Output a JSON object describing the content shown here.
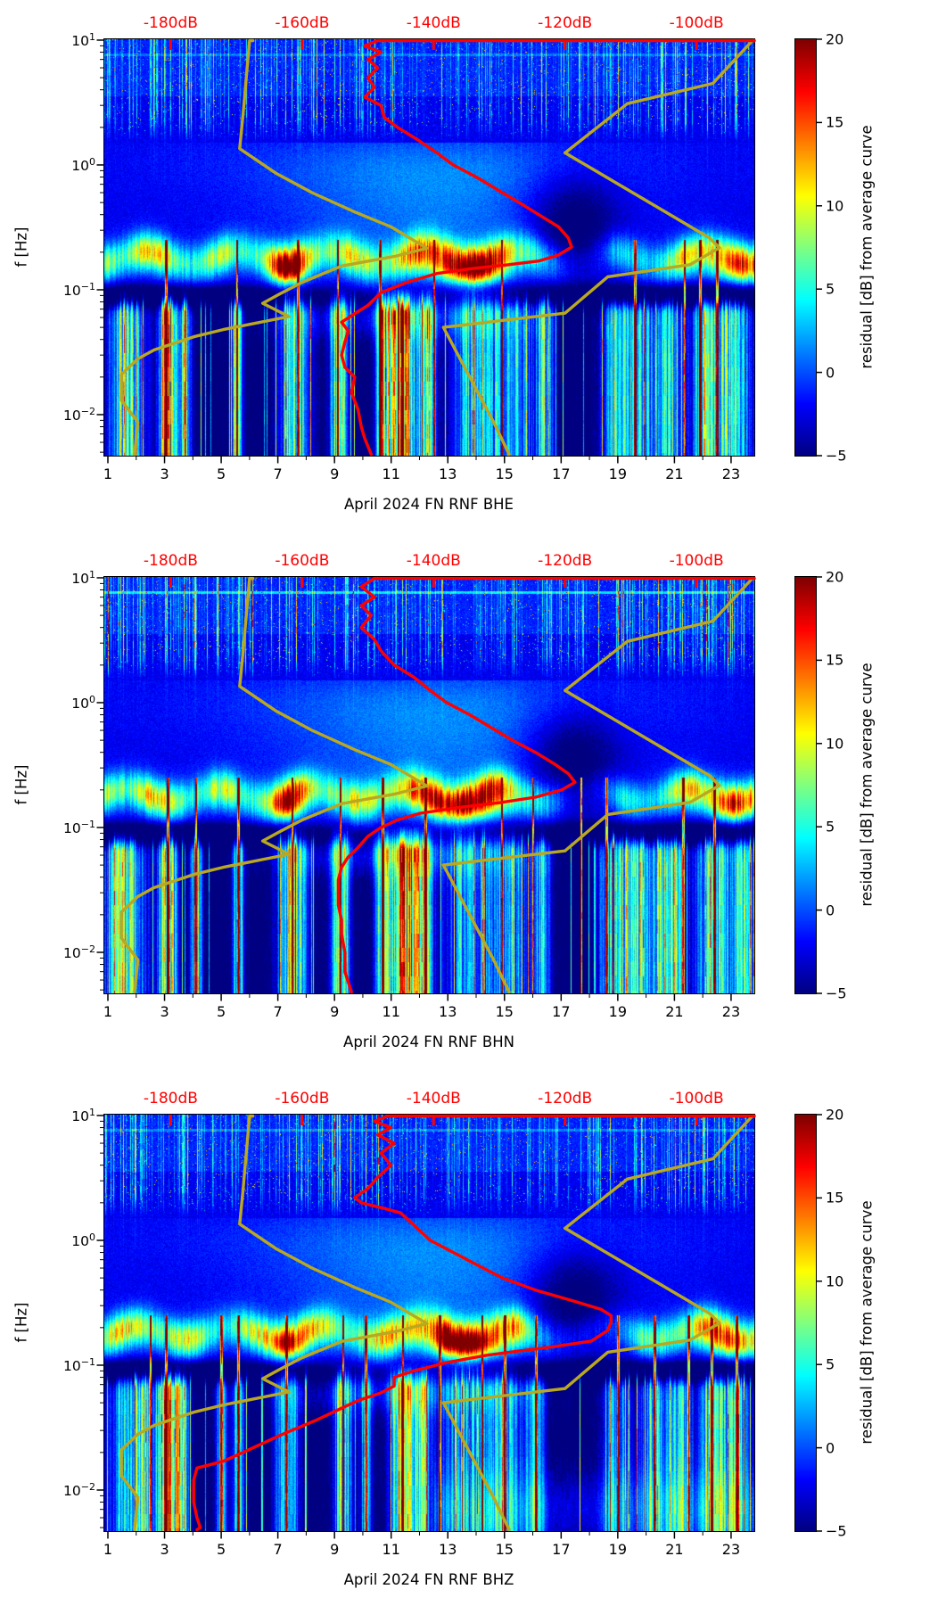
{
  "chart_data": {
    "type": "heatmap",
    "title": "",
    "description": "Three stacked day-frequency spectrogram panels of seismic PSD residuals (channels BHE, BHN, BHZ) for April 2024, station FN RNF, with overlaid average PSD curve (red) and high/low noise-model curves (dark yellow) plotted against a secondary dB axis on top.",
    "x_axis": {
      "tick_days": [
        1,
        3,
        5,
        7,
        9,
        11,
        13,
        15,
        17,
        19,
        21,
        23
      ],
      "minor_tick_days": [
        2,
        4,
        6,
        8,
        10,
        12,
        14,
        16,
        18,
        20,
        22
      ],
      "range_days": [
        0.874,
        23.82
      ]
    },
    "y_axis": {
      "label": "f [Hz]",
      "scale": "log",
      "decade_exponents": [
        1,
        0,
        -1,
        -2
      ],
      "decade_labels": [
        "10¹",
        "10⁰",
        "10⁻¹",
        "10⁻²"
      ],
      "range_hz": [
        0.0047,
        10.2
      ]
    },
    "top_axis": {
      "color": "#ff0000",
      "tick_values_dB": [
        -180,
        -160,
        -140,
        -120,
        -100
      ],
      "tick_labels": [
        "-180dB",
        "-160dB",
        "-140dB",
        "-120dB",
        "-100dB"
      ],
      "range_dB": [
        -190.1,
        -91.2
      ]
    },
    "colorbar": {
      "label": "residual [dB] from average curve",
      "tick_values": [
        20,
        15,
        10,
        5,
        0,
        -5
      ],
      "tick_labels": [
        "20",
        "15",
        "10",
        "5",
        "0",
        "−5"
      ],
      "range": [
        -5,
        20
      ],
      "colormap": "jet"
    },
    "curves": {
      "average_curve_color": "#ff0000",
      "noise_model_color": "#b9a820",
      "noise_model_high_dB_vs_Hz": [
        [
          10.5,
          -90.5
        ],
        [
          10,
          -91.5
        ],
        [
          4.5,
          -97.5
        ],
        [
          3.1,
          -110.5
        ],
        [
          1.25,
          -120
        ],
        [
          0.26,
          -98
        ],
        [
          0.217,
          -96.5
        ],
        [
          0.159,
          -101
        ],
        [
          0.127,
          -113.5
        ],
        [
          0.065,
          -120
        ],
        [
          0.05,
          -138.5
        ],
        [
          0.02,
          -134.5
        ],
        [
          0.009,
          -131
        ],
        [
          0.0046,
          -128.5
        ]
      ],
      "noise_model_low_dB_vs_Hz": [
        [
          10.5,
          -167.5
        ],
        [
          10,
          -168
        ],
        [
          5,
          -168.5
        ],
        [
          2.5,
          -169
        ],
        [
          1.35,
          -169.5
        ],
        [
          0.86,
          -164
        ],
        [
          0.6,
          -158.5
        ],
        [
          0.42,
          -152
        ],
        [
          0.32,
          -146.5
        ],
        [
          0.215,
          -141
        ],
        [
          0.185,
          -146
        ],
        [
          0.155,
          -154
        ],
        [
          0.115,
          -160
        ],
        [
          0.092,
          -163.5
        ],
        [
          0.078,
          -166
        ],
        [
          0.061,
          -162
        ],
        [
          0.048,
          -172
        ],
        [
          0.042,
          -176.5
        ],
        [
          0.033,
          -182.5
        ],
        [
          0.028,
          -185
        ],
        [
          0.021,
          -187.5
        ],
        [
          0.013,
          -187.5
        ],
        [
          0.0087,
          -185
        ],
        [
          0.0046,
          -185.5
        ]
      ]
    },
    "panels": [
      {
        "channel": "BHE",
        "xlabel": "April 2024 FN RNF  BHE",
        "average_curve_dB_vs_Hz": [
          [
            10.5,
            -90
          ],
          [
            10,
            -148.5
          ],
          [
            9,
            -150.5
          ],
          [
            8,
            -148
          ],
          [
            7,
            -150
          ],
          [
            6,
            -148.5
          ],
          [
            5,
            -150
          ],
          [
            4.2,
            -149
          ],
          [
            3.5,
            -150.5
          ],
          [
            3,
            -148
          ],
          [
            2.4,
            -147.5
          ],
          [
            2,
            -145.5
          ],
          [
            1.6,
            -142.5
          ],
          [
            1.25,
            -139.5
          ],
          [
            1,
            -137
          ],
          [
            0.8,
            -133.5
          ],
          [
            0.62,
            -130
          ],
          [
            0.5,
            -127
          ],
          [
            0.4,
            -124
          ],
          [
            0.32,
            -121
          ],
          [
            0.26,
            -119.5
          ],
          [
            0.22,
            -119
          ],
          [
            0.19,
            -121
          ],
          [
            0.17,
            -124
          ],
          [
            0.158,
            -129
          ],
          [
            0.148,
            -134
          ],
          [
            0.135,
            -139.5
          ],
          [
            0.115,
            -144
          ],
          [
            0.095,
            -148
          ],
          [
            0.075,
            -150
          ],
          [
            0.062,
            -152.5
          ],
          [
            0.055,
            -154
          ],
          [
            0.047,
            -153
          ],
          [
            0.038,
            -153.5
          ],
          [
            0.03,
            -154
          ],
          [
            0.024,
            -153.5
          ],
          [
            0.02,
            -152
          ],
          [
            0.015,
            -152.5
          ],
          [
            0.011,
            -151.5
          ],
          [
            0.008,
            -151
          ],
          [
            0.0065,
            -150.5
          ],
          [
            0.0046,
            -149.5
          ]
        ],
        "texture": {
          "seed": 7,
          "hline": 0.5,
          "ms7": 9,
          "core": 9,
          "wash": 0,
          "clusters": [
            [
              1.6,
              0.7,
              12
            ],
            [
              3.05,
              0.25,
              19
            ],
            [
              3.6,
              0.3,
              12
            ],
            [
              5.55,
              0.18,
              14
            ],
            [
              7.6,
              0.5,
              13
            ],
            [
              9.15,
              0.3,
              15
            ],
            [
              10.7,
              0.25,
              16
            ],
            [
              11.4,
              0.5,
              21
            ],
            [
              12.3,
              0.25,
              15
            ],
            [
              13.8,
              0.7,
              9
            ],
            [
              15.2,
              0.8,
              10
            ],
            [
              16.4,
              0.3,
              10
            ],
            [
              18.9,
              0.5,
              9
            ],
            [
              19.8,
              0.6,
              10
            ],
            [
              20.9,
              0.5,
              10
            ],
            [
              22.0,
              0.3,
              10
            ],
            [
              22.9,
              0.8,
              13
            ]
          ],
          "spikes": [
            3.05,
            5.55,
            7.7,
            9.1,
            10.6,
            12.5,
            14.9,
            19.6,
            21.35,
            21.9,
            22.5
          ]
        }
      },
      {
        "channel": "BHN",
        "xlabel": "April 2024 FN RNF  BHN",
        "average_curve_dB_vs_Hz": [
          [
            10.5,
            -90
          ],
          [
            10,
            -149
          ],
          [
            8.5,
            -151
          ],
          [
            7,
            -149
          ],
          [
            6,
            -151
          ],
          [
            5,
            -149.5
          ],
          [
            4,
            -151
          ],
          [
            3.2,
            -149
          ],
          [
            2.6,
            -148
          ],
          [
            2,
            -146
          ],
          [
            1.6,
            -143
          ],
          [
            1.25,
            -140.5
          ],
          [
            1,
            -138
          ],
          [
            0.8,
            -134.5
          ],
          [
            0.62,
            -131
          ],
          [
            0.5,
            -128
          ],
          [
            0.4,
            -124.5
          ],
          [
            0.32,
            -121.5
          ],
          [
            0.27,
            -119.5
          ],
          [
            0.23,
            -118.5
          ],
          [
            0.2,
            -120.5
          ],
          [
            0.175,
            -124.5
          ],
          [
            0.158,
            -130
          ],
          [
            0.145,
            -136
          ],
          [
            0.13,
            -142
          ],
          [
            0.115,
            -145.5
          ],
          [
            0.1,
            -148
          ],
          [
            0.085,
            -150
          ],
          [
            0.069,
            -151.5
          ],
          [
            0.058,
            -153
          ],
          [
            0.048,
            -154
          ],
          [
            0.038,
            -154.5
          ],
          [
            0.03,
            -154.5
          ],
          [
            0.024,
            -154.5
          ],
          [
            0.018,
            -154
          ],
          [
            0.014,
            -154
          ],
          [
            0.01,
            -153.5
          ],
          [
            0.007,
            -153.5
          ],
          [
            0.0046,
            -152.5
          ]
        ],
        "texture": {
          "seed": 13,
          "hline": 1.2,
          "ms7": 8,
          "core": 8,
          "wash": 0,
          "clusters": [
            [
              1.6,
              0.7,
              13
            ],
            [
              3.1,
              0.3,
              19
            ],
            [
              4.1,
              0.2,
              14
            ],
            [
              5.6,
              0.2,
              13
            ],
            [
              7.5,
              0.5,
              14
            ],
            [
              9.2,
              0.3,
              15
            ],
            [
              10.7,
              0.25,
              16
            ],
            [
              11.5,
              0.5,
              21
            ],
            [
              12.2,
              0.25,
              14
            ],
            [
              13.6,
              0.8,
              9
            ],
            [
              15.1,
              0.7,
              9
            ],
            [
              16.3,
              0.3,
              10
            ],
            [
              18.8,
              0.5,
              10
            ],
            [
              19.6,
              0.6,
              11
            ],
            [
              20.8,
              0.5,
              15
            ],
            [
              22.4,
              0.6,
              13
            ],
            [
              23.4,
              0.4,
              12
            ]
          ],
          "spikes": [
            3.1,
            4.1,
            5.6,
            7.5,
            9.2,
            10.7,
            12.2,
            14.9,
            16.0,
            17.7,
            18.6,
            21.3,
            22.4
          ]
        }
      },
      {
        "channel": "BHZ",
        "xlabel": "April 2024 FN RNF  BHZ",
        "average_curve_dB_vs_Hz": [
          [
            10.5,
            -90
          ],
          [
            10,
            -147
          ],
          [
            9,
            -149
          ],
          [
            8,
            -146.5
          ],
          [
            7,
            -148.5
          ],
          [
            6,
            -146
          ],
          [
            5,
            -148
          ],
          [
            4,
            -146.5
          ],
          [
            3.2,
            -148.5
          ],
          [
            2.6,
            -150
          ],
          [
            2.2,
            -152
          ],
          [
            2,
            -151
          ],
          [
            1.8,
            -147.5
          ],
          [
            1.66,
            -145
          ],
          [
            1.4,
            -143.5
          ],
          [
            1.25,
            -142.5
          ],
          [
            1,
            -140.5
          ],
          [
            0.8,
            -137
          ],
          [
            0.62,
            -133
          ],
          [
            0.5,
            -129.5
          ],
          [
            0.4,
            -124.5
          ],
          [
            0.33,
            -119
          ],
          [
            0.28,
            -114.5
          ],
          [
            0.25,
            -113
          ],
          [
            0.22,
            -113
          ],
          [
            0.19,
            -113.5
          ],
          [
            0.156,
            -116
          ],
          [
            0.14,
            -122
          ],
          [
            0.128,
            -128
          ],
          [
            0.12,
            -132
          ],
          [
            0.105,
            -138
          ],
          [
            0.09,
            -143
          ],
          [
            0.08,
            -146
          ],
          [
            0.068,
            -146
          ],
          [
            0.06,
            -148
          ],
          [
            0.052,
            -151.5
          ],
          [
            0.044,
            -154.5
          ],
          [
            0.036,
            -158
          ],
          [
            0.028,
            -163
          ],
          [
            0.02,
            -169
          ],
          [
            0.017,
            -172
          ],
          [
            0.015,
            -176
          ],
          [
            0.012,
            -176.5
          ],
          [
            0.008,
            -176.5
          ],
          [
            0.006,
            -176
          ],
          [
            0.005,
            -175.5
          ],
          [
            0.0046,
            -176
          ]
        ],
        "texture": {
          "seed": 29,
          "hline": 0.6,
          "ms7": 7,
          "core": 10,
          "wash": 3,
          "clusters": [
            [
              1.5,
              0.5,
              10
            ],
            [
              2.2,
              0.3,
              12
            ],
            [
              3.05,
              0.35,
              23
            ],
            [
              3.6,
              0.25,
              14
            ],
            [
              5.0,
              0.2,
              10
            ],
            [
              5.6,
              0.2,
              12
            ],
            [
              7.3,
              0.4,
              12
            ],
            [
              9.3,
              0.3,
              14
            ],
            [
              10.1,
              0.2,
              10
            ],
            [
              11.4,
              0.4,
              19
            ],
            [
              12.1,
              0.25,
              12
            ],
            [
              13.6,
              1.0,
              8
            ],
            [
              15.0,
              0.8,
              8
            ],
            [
              16.1,
              0.3,
              9
            ],
            [
              19.0,
              0.5,
              9
            ],
            [
              20.3,
              0.5,
              9
            ],
            [
              21.2,
              0.4,
              10
            ],
            [
              22.3,
              0.4,
              13
            ],
            [
              23.2,
              0.5,
              12
            ]
          ],
          "spikes": [
            2.5,
            3.05,
            5.0,
            5.6,
            7.3,
            9.3,
            10.1,
            11.4,
            12.7,
            14.2,
            15.0,
            16.1,
            19.0,
            20.3,
            21.5,
            22.3,
            23.2
          ]
        }
      }
    ]
  }
}
